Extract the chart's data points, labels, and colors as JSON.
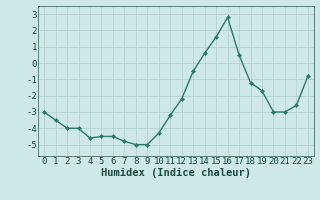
{
  "x": [
    0,
    1,
    2,
    3,
    4,
    5,
    6,
    7,
    8,
    9,
    10,
    11,
    12,
    13,
    14,
    15,
    16,
    17,
    18,
    19,
    20,
    21,
    22,
    23
  ],
  "y": [
    -3.0,
    -3.5,
    -4.0,
    -4.0,
    -4.6,
    -4.5,
    -4.5,
    -4.8,
    -5.0,
    -5.0,
    -4.3,
    -3.2,
    -2.2,
    -0.5,
    0.6,
    1.6,
    2.8,
    0.5,
    -1.2,
    -1.7,
    -3.0,
    -3.0,
    -2.6,
    -0.8
  ],
  "xlabel": "Humidex (Indice chaleur)",
  "xlim": [
    -0.5,
    23.5
  ],
  "ylim": [
    -5.7,
    3.5
  ],
  "yticks": [
    -5,
    -4,
    -3,
    -2,
    -1,
    0,
    1,
    2,
    3
  ],
  "xticks": [
    0,
    1,
    2,
    3,
    4,
    5,
    6,
    7,
    8,
    9,
    10,
    11,
    12,
    13,
    14,
    15,
    16,
    17,
    18,
    19,
    20,
    21,
    22,
    23
  ],
  "line_color": "#2d7a68",
  "marker_size": 2.5,
  "line_width": 1.0,
  "bg_color": "#cde8e5",
  "grid_color": "#b0d0cc",
  "xlabel_fontsize": 7.5,
  "tick_fontsize": 6.5
}
